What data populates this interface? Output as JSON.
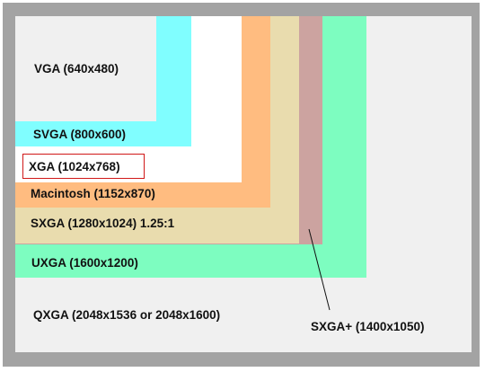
{
  "diagram": {
    "resolutions": [
      {
        "key": "vga",
        "label": "VGA (640x480)",
        "color": "#f0f0f0"
      },
      {
        "key": "svga",
        "label": "SVGA (800x600)",
        "color": "#80feff"
      },
      {
        "key": "xga",
        "label": "XGA (1024x768)",
        "color": "#ffffff",
        "highlight_color": "#d01818"
      },
      {
        "key": "mac",
        "label": "Macintosh (1152x870)",
        "color": "#ffbc80"
      },
      {
        "key": "sxga",
        "label": "SXGA (1280x1024) 1.25:1",
        "color": "#e9dcae"
      },
      {
        "key": "sxgaplus",
        "label": "SXGA+ (1400x1050)",
        "color": "#cca3a0"
      },
      {
        "key": "uxga",
        "label": "UXGA (1600x1200)",
        "color": "#7dfdc0"
      },
      {
        "key": "qxga",
        "label": "QXGA (2048x1536 or 2048x1600)",
        "color": "#f0f0f0"
      }
    ],
    "frame_color": "#a3a3a3"
  }
}
